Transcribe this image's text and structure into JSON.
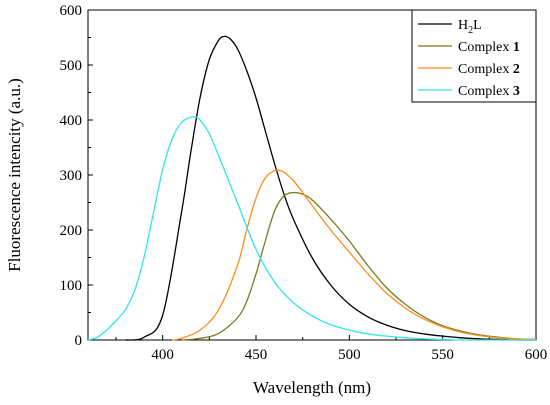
{
  "chart_data": {
    "type": "line",
    "xlabel": "Wavelength (nm)",
    "ylabel": "Fluorescence intencity (a.u.)",
    "xlim": [
      360,
      600
    ],
    "ylim": [
      0,
      600
    ],
    "xticks": [
      400,
      450,
      500,
      550,
      600
    ],
    "yticks": [
      0,
      100,
      200,
      300,
      400,
      500,
      600
    ],
    "legend_position": "top-right",
    "series": [
      {
        "name": "H",
        "name_sub": "2",
        "name_suffix": "L",
        "color": "#000000",
        "x": [
          380,
          390,
          400,
          410,
          415,
          420,
          425,
          430,
          433,
          436,
          440,
          445,
          450,
          455,
          460,
          465,
          470,
          480,
          490,
          500,
          510,
          520,
          530,
          540,
          550,
          560,
          570,
          580,
          590,
          600
        ],
        "y": [
          0,
          5,
          45,
          230,
          340,
          440,
          510,
          545,
          552,
          548,
          530,
          490,
          440,
          380,
          320,
          265,
          220,
          150,
          100,
          65,
          42,
          27,
          17,
          11,
          7,
          4,
          2,
          1,
          0,
          0
        ]
      },
      {
        "name": "Complex ",
        "name_bold": "1",
        "color": "#7a7a1e",
        "x": [
          410,
          420,
          430,
          440,
          445,
          450,
          455,
          460,
          465,
          470,
          475,
          480,
          490,
          500,
          510,
          520,
          530,
          540,
          550,
          560,
          570,
          580,
          590,
          600
        ],
        "y": [
          0,
          3,
          12,
          40,
          70,
          120,
          180,
          235,
          262,
          268,
          265,
          255,
          220,
          180,
          135,
          95,
          65,
          42,
          26,
          16,
          9,
          5,
          2,
          1
        ]
      },
      {
        "name": "Complex ",
        "name_bold": "2",
        "color": "#ff8c1a",
        "x": [
          405,
          410,
          420,
          430,
          440,
          445,
          450,
          455,
          460,
          463,
          465,
          470,
          475,
          480,
          490,
          500,
          510,
          520,
          530,
          540,
          550,
          560,
          570,
          580,
          590,
          600
        ],
        "y": [
          0,
          3,
          18,
          55,
          135,
          200,
          258,
          295,
          308,
          308,
          305,
          290,
          268,
          245,
          200,
          160,
          120,
          85,
          58,
          38,
          24,
          14,
          8,
          4,
          2,
          1
        ]
      },
      {
        "name": "Complex ",
        "name_bold": "3",
        "color": "#33e6ea",
        "x": [
          360,
          365,
          370,
          375,
          380,
          385,
          390,
          395,
          400,
          405,
          410,
          415,
          418,
          420,
          425,
          430,
          440,
          450,
          460,
          470,
          480,
          490,
          500,
          510,
          520,
          530,
          540,
          550,
          560,
          570,
          580,
          590,
          600
        ],
        "y": [
          0,
          5,
          18,
          35,
          55,
          90,
          150,
          230,
          310,
          365,
          395,
          405,
          405,
          400,
          375,
          335,
          250,
          165,
          105,
          68,
          44,
          28,
          18,
          11,
          7,
          4,
          2,
          1,
          0,
          0,
          0,
          0,
          0
        ]
      }
    ]
  }
}
